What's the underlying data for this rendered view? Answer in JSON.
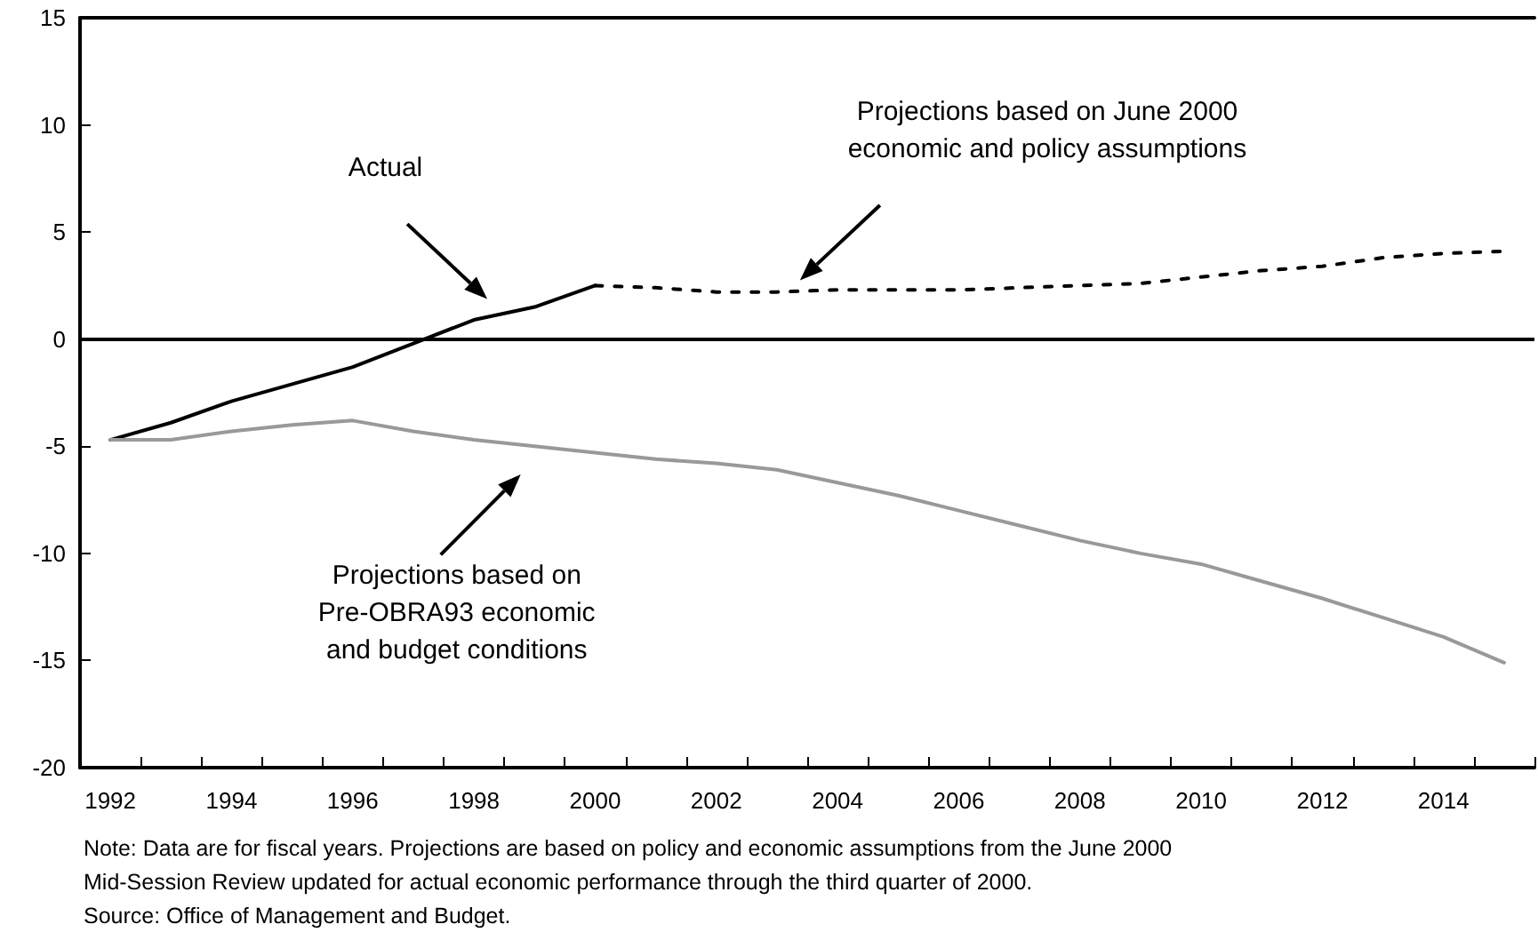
{
  "chart_data": {
    "type": "line",
    "categories": [
      "1992",
      null,
      "1994",
      null,
      "1996",
      null,
      "1998",
      null,
      "2000",
      null,
      "2002",
      null,
      "2004",
      null,
      "2006",
      null,
      "2008",
      null,
      "2010",
      null,
      "2012",
      null,
      "2014",
      null
    ],
    "series": [
      {
        "color": "#000000",
        "line_style": "solid",
        "values": [
          -4.7,
          -3.9,
          -2.9,
          -2.1,
          -1.3,
          -0.2,
          0.9,
          1.5,
          2.5,
          null,
          null,
          null,
          null,
          null,
          null,
          null,
          null,
          null,
          null,
          null,
          null,
          null,
          null,
          null
        ]
      },
      {
        "color": "#000000",
        "line_style": "dashed",
        "values": [
          null,
          null,
          null,
          null,
          null,
          null,
          null,
          null,
          2.5,
          2.4,
          2.2,
          2.2,
          2.3,
          2.3,
          2.3,
          2.4,
          2.5,
          2.6,
          2.9,
          3.2,
          3.4,
          3.8,
          4.0,
          4.1
        ]
      },
      {
        "color": "#999999",
        "line_style": "solid",
        "values": [
          -4.7,
          -4.7,
          -4.3,
          -4.0,
          -3.8,
          -4.3,
          -4.7,
          -5.0,
          -5.3,
          -5.6,
          -5.8,
          -6.1,
          -6.7,
          -7.3,
          -8.0,
          -8.7,
          -9.4,
          -10.0,
          -10.5,
          -11.3,
          -12.1,
          -13.0,
          -13.9,
          -15.1
        ]
      }
    ],
    "ylim": [
      -20,
      15
    ],
    "yticks": [
      -20,
      -15,
      -10,
      -5,
      0,
      5,
      10,
      15
    ],
    "ref_lines": [
      {
        "axis": "y",
        "value": 0,
        "color": "#000000"
      }
    ],
    "grid": false,
    "marker": "none",
    "annotations": [
      "Actual",
      "Projections based on June 2000\neconomic and policy assumptions",
      "Projections based on\nPre-OBRA93 economic\nand budget conditions",
      "Note: Data are for fiscal years. Projections are based on policy and economic assumptions from the June 2000\nMid-Session Review updated for actual economic performance through the third quarter of 2000.",
      "Source: Office of Management and Budget."
    ]
  }
}
